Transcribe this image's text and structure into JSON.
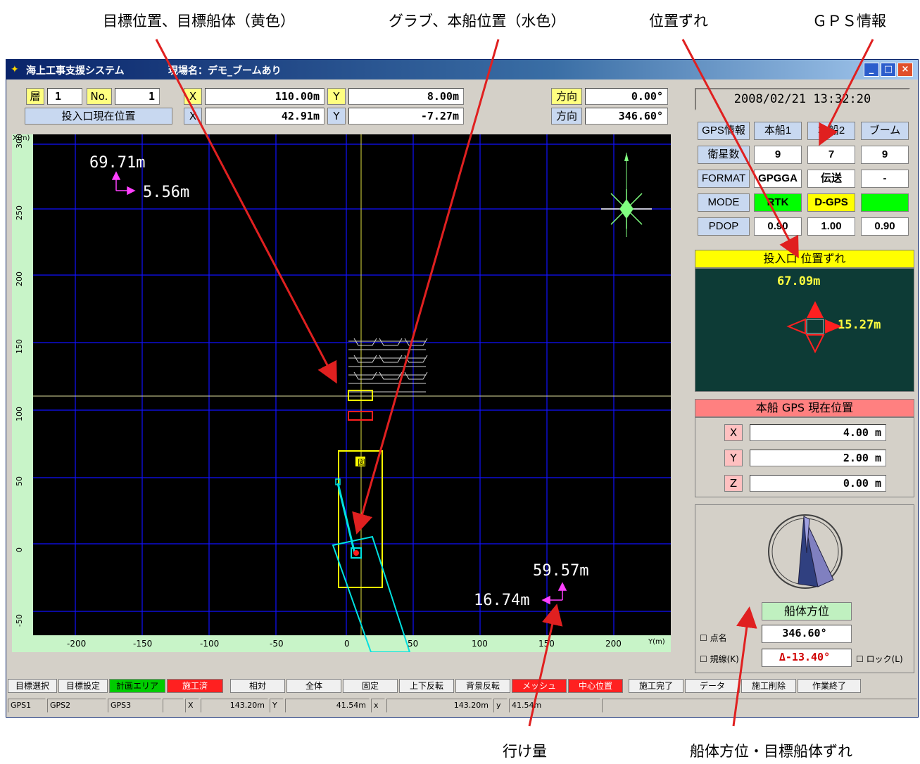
{
  "callouts": {
    "target": "目標位置、目標船体（黄色）",
    "grab": "グラブ、本船位置（水色）",
    "offset": "位置ずれ",
    "gps": "ＧＰＳ情報",
    "travel": "行け量",
    "heading": "船体方位・目標船体ずれ"
  },
  "window": {
    "title": "海上工事支援システム",
    "site": "現場名：デモ_ブームあり",
    "buttons": [
      "_",
      "□",
      "×"
    ]
  },
  "header": {
    "layer_label": "層",
    "layer_value": "1",
    "no_label": "No.",
    "no_value": "1",
    "row1": {
      "x_label": "X",
      "x_value": "110.00m",
      "y_label": "Y",
      "y_value": "8.00m",
      "dir_label": "方向",
      "dir_value": "0.00°"
    },
    "hopper_label": "投入口現在位置",
    "row2": {
      "x_label": "X",
      "x_value": "42.91m",
      "y_label": "Y",
      "y_value": "-7.27m",
      "dir_label": "方向",
      "dir_value": "346.60°"
    }
  },
  "plot": {
    "x_axis_title": "X(m)",
    "y_axis_title": "Y(m)",
    "x_ticks": [
      "300",
      "250",
      "200",
      "150",
      "100",
      "50",
      "0",
      "-50"
    ],
    "y_ticks": [
      "-200",
      "-150",
      "-100",
      "-50",
      "0",
      "50",
      "100",
      "150",
      "200"
    ],
    "top_readout_x": "69.71m",
    "top_readout_y": "5.56m",
    "bottom_readout_x": "59.57m",
    "bottom_readout_y": "16.74m",
    "marker_label": "図"
  },
  "status_panel": {
    "datetime": "2008/02/21 13:32:20",
    "gps": {
      "headers": [
        "GPS情報",
        "本船1",
        "本船2",
        "ブーム"
      ],
      "rows": [
        {
          "label": "衛星数",
          "values": [
            "9",
            "7",
            "9"
          ]
        },
        {
          "label": "FORMAT",
          "values": [
            "GPGGA",
            "伝送",
            "-"
          ]
        },
        {
          "label": "MODE",
          "values": [
            "RTK",
            "D-GPS",
            "-"
          ]
        },
        {
          "label": "PDOP",
          "values": [
            "0.90",
            "1.00",
            "0.90"
          ]
        }
      ],
      "mode_colors": [
        "#00ff00",
        "#ffff00",
        "#00ff00"
      ]
    },
    "offset": {
      "title": "投入口 位置ずれ",
      "north": "67.09m",
      "east": "15.27m"
    },
    "ship_position": {
      "title": "本船 GPS 現在位置",
      "x_label": "X",
      "x_value": "4.00 m",
      "y_label": "Y",
      "y_value": "2.00 m",
      "z_label": "Z",
      "z_value": "0.00 m"
    },
    "heading": {
      "title": "船体方位",
      "value": "346.60°",
      "deviation": "Δ-13.40°",
      "chk_point": "点名",
      "chk_line": "規線(K)",
      "chk_lock": "ロック(L)"
    }
  },
  "toolbar": [
    "目標選択",
    "目標設定",
    "計画エリア",
    "施工済",
    "相対",
    "全体",
    "固定",
    "上下反転",
    "背景反転",
    "メッシュ",
    "中心位置",
    "施工完了",
    "データ",
    "施工削除",
    "作業終了"
  ],
  "toolbar_colors": {
    "計画エリア": "#00cc00",
    "施工済": "#ff2020",
    "メッシュ": "#ff2020",
    "中心位置": "#ff2020"
  },
  "statusbar": [
    "GPS1",
    "GPS2",
    "GPS3",
    "",
    "X",
    "143.20m",
    "Y",
    "41.54m",
    "x",
    "143.20m",
    "y",
    "41.54m"
  ]
}
